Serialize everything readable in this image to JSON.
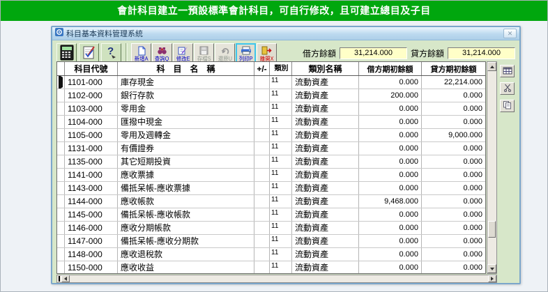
{
  "banner": {
    "text": "會計科目建立一預設標準會計科目，可自行修改，且可建立總目及子目"
  },
  "window": {
    "title": "科目基本資料管理系統"
  },
  "toolbar": {
    "big_buttons": [
      {
        "icon": "calculator-icon"
      },
      {
        "icon": "edit-document-icon"
      },
      {
        "icon": "help-icon"
      }
    ],
    "buttons": [
      {
        "label": "新增A",
        "icon": "new-document-icon",
        "state": "normal"
      },
      {
        "label": "查詢Q",
        "icon": "search-icon",
        "state": "normal"
      },
      {
        "label": "修改E",
        "icon": "modify-icon",
        "state": "normal"
      },
      {
        "label": "存檔S",
        "icon": "save-icon",
        "state": "disabled"
      },
      {
        "label": "還原U",
        "icon": "undo-icon",
        "state": "disabled"
      },
      {
        "label": "列印P",
        "icon": "printer-icon",
        "state": "focused"
      },
      {
        "label": "離開X",
        "icon": "exit-icon",
        "state": "exit"
      }
    ]
  },
  "balances": {
    "debit_label": "借方餘額",
    "debit_value": "31,214.000",
    "credit_label": "貸方餘額",
    "credit_value": "31,214.000"
  },
  "table": {
    "headers": [
      "科目代號",
      "科　目　名　稱",
      "+/-",
      "類別",
      "類別名稱",
      "借方期初餘額",
      "貸方期初餘額"
    ],
    "rows": [
      {
        "code": "1101-000",
        "name": "庫存現金",
        "pm": "",
        "cls": "11",
        "cls_name": "流動資產",
        "debit": "0.000",
        "credit": "22,214.000",
        "current": true
      },
      {
        "code": "1102-000",
        "name": "銀行存款",
        "pm": "",
        "cls": "11",
        "cls_name": "流動資產",
        "debit": "200.000",
        "credit": "0.000",
        "current": false
      },
      {
        "code": "1103-000",
        "name": "零用金",
        "pm": "",
        "cls": "11",
        "cls_name": "流動資產",
        "debit": "0.000",
        "credit": "0.000",
        "current": false
      },
      {
        "code": "1104-000",
        "name": "匯撥中現金",
        "pm": "",
        "cls": "11",
        "cls_name": "流動資產",
        "debit": "0.000",
        "credit": "0.000",
        "current": false
      },
      {
        "code": "1105-000",
        "name": "零用及週轉金",
        "pm": "",
        "cls": "11",
        "cls_name": "流動資產",
        "debit": "0.000",
        "credit": "9,000.000",
        "current": false
      },
      {
        "code": "1131-000",
        "name": "有價證券",
        "pm": "",
        "cls": "11",
        "cls_name": "流動資產",
        "debit": "0.000",
        "credit": "0.000",
        "current": false
      },
      {
        "code": "1135-000",
        "name": "其它短期投資",
        "pm": "",
        "cls": "11",
        "cls_name": "流動資產",
        "debit": "0.000",
        "credit": "0.000",
        "current": false
      },
      {
        "code": "1141-000",
        "name": "應收票據",
        "pm": "",
        "cls": "11",
        "cls_name": "流動資產",
        "debit": "0.000",
        "credit": "0.000",
        "current": false
      },
      {
        "code": "1143-000",
        "name": "備抵呆帳-應收票據",
        "pm": "",
        "cls": "11",
        "cls_name": "流動資產",
        "debit": "0.000",
        "credit": "0.000",
        "current": false
      },
      {
        "code": "1144-000",
        "name": "應收帳款",
        "pm": "",
        "cls": "11",
        "cls_name": "流動資產",
        "debit": "9,468.000",
        "credit": "0.000",
        "current": false
      },
      {
        "code": "1145-000",
        "name": "備抵呆帳-應收帳款",
        "pm": "",
        "cls": "11",
        "cls_name": "流動資產",
        "debit": "0.000",
        "credit": "0.000",
        "current": false
      },
      {
        "code": "1146-000",
        "name": "應收分期帳款",
        "pm": "",
        "cls": "11",
        "cls_name": "流動資產",
        "debit": "0.000",
        "credit": "0.000",
        "current": false
      },
      {
        "code": "1147-000",
        "name": "備抵呆帳-應收分期款",
        "pm": "",
        "cls": "11",
        "cls_name": "流動資產",
        "debit": "0.000",
        "credit": "0.000",
        "current": false
      },
      {
        "code": "1148-000",
        "name": "應收退稅款",
        "pm": "",
        "cls": "11",
        "cls_name": "流動資產",
        "debit": "0.000",
        "credit": "0.000",
        "current": false
      },
      {
        "code": "1150-000",
        "name": "應收收益",
        "pm": "",
        "cls": "11",
        "cls_name": "流動資產",
        "debit": "0.000",
        "credit": "0.000",
        "current": false
      }
    ]
  },
  "colors": {
    "banner_green": "#00A70E",
    "window_bg": "#D7E7C9",
    "titlebar_blue": "#BCD9EF",
    "titlebar_blue_light": "#EBF5FD",
    "field_yellow": "#FFFFC8",
    "button_label_blue": "#0000C8",
    "exit_red": "#D00000"
  }
}
